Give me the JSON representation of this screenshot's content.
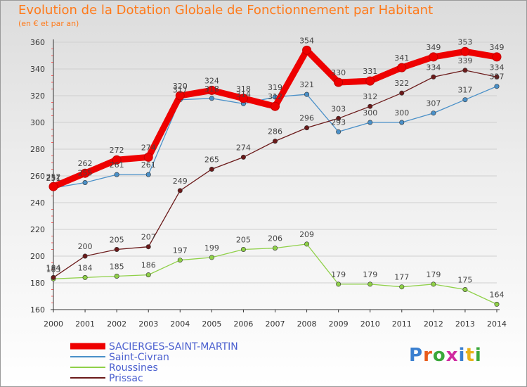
{
  "header": {
    "title": "Evolution de la Dotation Globale de Fonctionnement par Habitant",
    "subtitle": "(en € et par an)"
  },
  "logo": {
    "text": "Proxiti"
  },
  "colors": {
    "title": "#ff7a1a",
    "legend_text": "#4a5fcf",
    "grid": "#cfcfcf"
  },
  "chart_data": {
    "type": "line",
    "x": [
      "2000",
      "2001",
      "2002",
      "2003",
      "2004",
      "2005",
      "2006",
      "2007",
      "2008",
      "2009",
      "2010",
      "2011",
      "2012",
      "2013",
      "2014"
    ],
    "ylim": [
      160,
      360
    ],
    "yticks": [
      160,
      180,
      200,
      220,
      240,
      260,
      280,
      300,
      320,
      340,
      360
    ],
    "grid": true,
    "legend_position": "bottom-left",
    "series": [
      {
        "name": "SACIERGES-SAINT-MARTIN",
        "color": "#ee0000",
        "highlight": true,
        "values": [
          252,
          262,
          272,
          274,
          320,
          324,
          318,
          312,
          354,
          330,
          331,
          341,
          349,
          353,
          349
        ],
        "labels": [
          "252",
          "262",
          "272",
          "274",
          "320",
          "324",
          "318",
          "312",
          "354",
          "330",
          "331",
          "341",
          "349",
          "353",
          "349"
        ]
      },
      {
        "name": "Saint-Civran",
        "color": "#4a90c8",
        "highlight": false,
        "values": [
          251,
          255,
          261,
          261,
          317,
          318,
          314,
          319,
          321,
          293,
          300,
          300,
          307,
          317,
          327
        ],
        "labels": [
          "251",
          "255",
          "261",
          "261",
          "317",
          "318",
          "314",
          "319",
          "321",
          "293",
          "300",
          "300",
          "307",
          "317",
          "327"
        ]
      },
      {
        "name": "Roussines",
        "color": "#8fd048",
        "highlight": false,
        "values": [
          183,
          184,
          185,
          186,
          197,
          199,
          205,
          206,
          209,
          179,
          179,
          177,
          179,
          175,
          164
        ],
        "labels": [
          "183",
          "184",
          "185",
          "186",
          "197",
          "199",
          "205",
          "206",
          "209",
          "179",
          "179",
          "177",
          "179",
          "175",
          "164"
        ]
      },
      {
        "name": "Prissac",
        "color": "#6b1a1a",
        "highlight": false,
        "values": [
          184,
          200,
          205,
          207,
          249,
          265,
          274,
          286,
          296,
          303,
          312,
          322,
          334,
          339,
          334
        ],
        "labels": [
          "184",
          "200",
          "205",
          "207",
          "249",
          "265",
          "274",
          "286",
          "296",
          "303",
          "312",
          "322",
          "334",
          "339",
          "334"
        ]
      }
    ]
  }
}
